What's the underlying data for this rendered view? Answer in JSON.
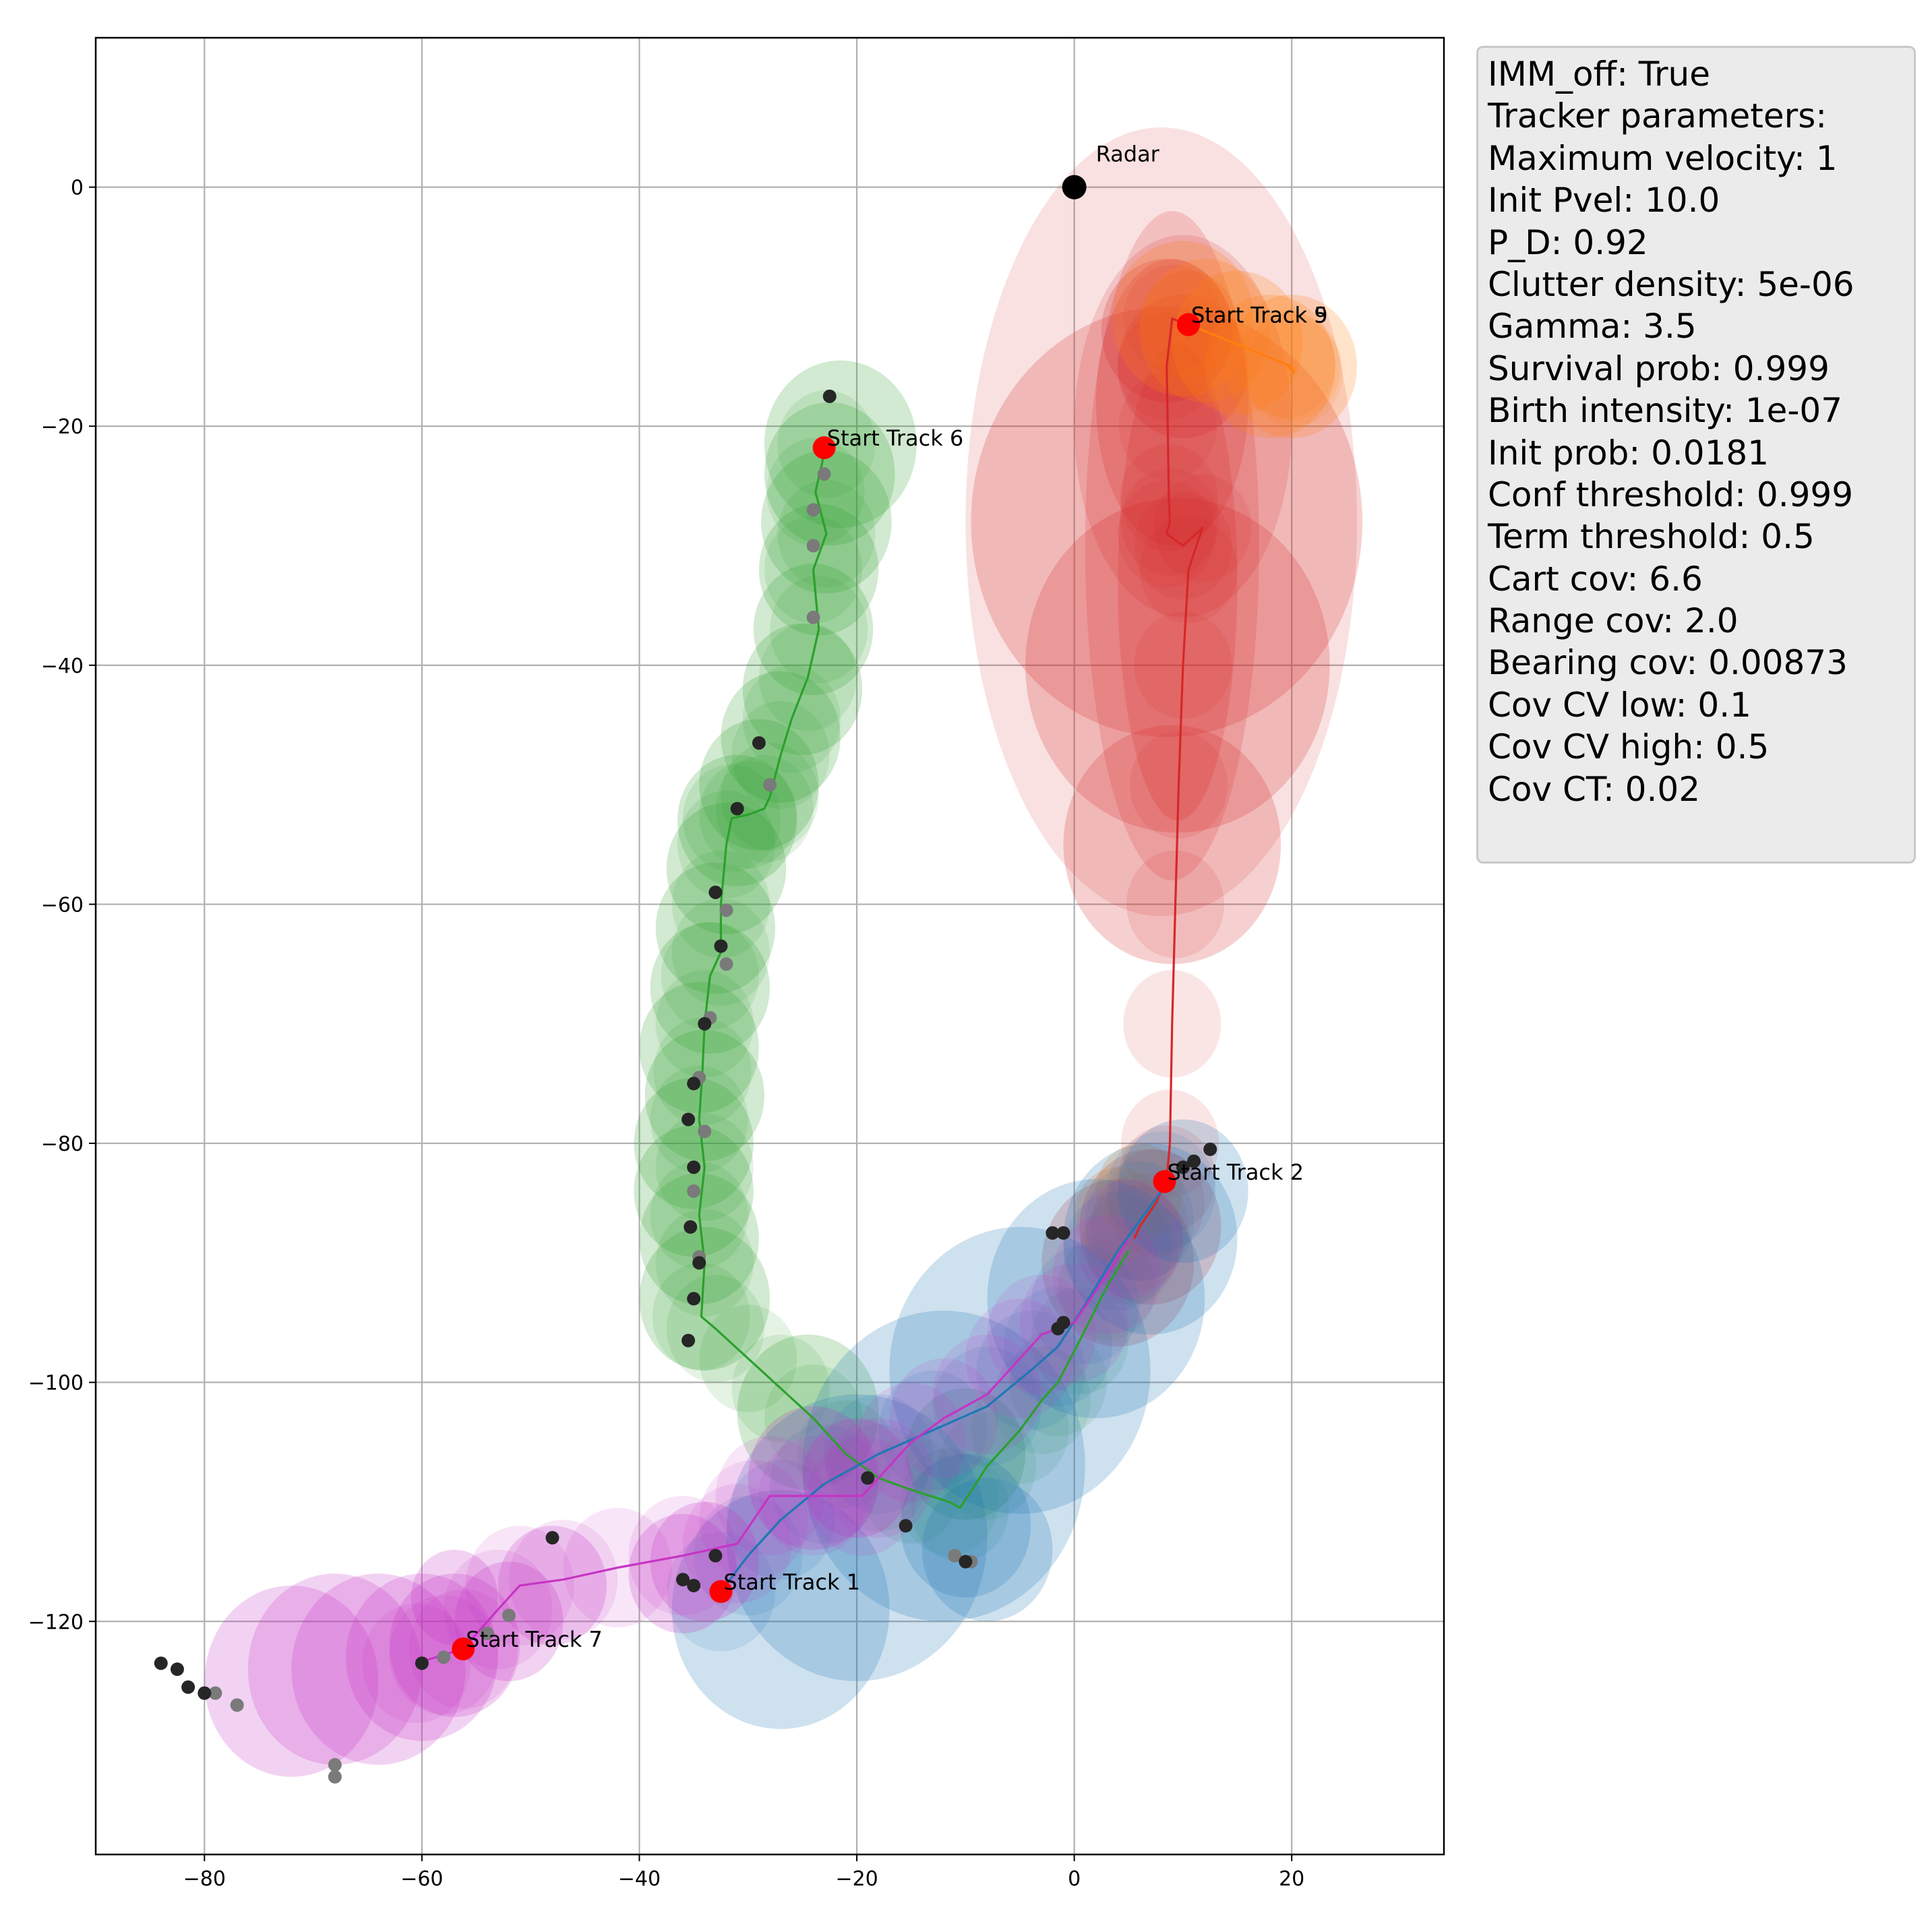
{
  "info_box": {
    "lines": [
      "IMM_off: True",
      "Tracker parameters:",
      "Maximum velocity: 1",
      "Init Pvel: 10.0",
      "P_D: 0.92",
      "Clutter density: 5e-06",
      "Gamma: 3.5",
      "Survival prob: 0.999",
      "Birth intensity: 1e-07",
      "Init prob: 0.0181",
      "Conf threshold: 0.999",
      "Term threshold: 0.5",
      "Cart cov: 6.6",
      "Range cov: 2.0",
      "Bearing cov: 0.00873",
      "Cov CV low: 0.1",
      "Cov CV high: 0.5",
      "Cov CT: 0.02"
    ]
  },
  "chart_data": {
    "type": "scatter",
    "xlim": [
      -90,
      34
    ],
    "ylim": [
      -139.5,
      12.5
    ],
    "xticks": [
      -80,
      -60,
      -40,
      -20,
      0,
      20
    ],
    "yticks": [
      0,
      -20,
      -40,
      -60,
      -80,
      -100,
      -120
    ],
    "xtick_labels": [
      "−80",
      "−60",
      "−40",
      "−20",
      "0",
      "20"
    ],
    "ytick_labels": [
      "0",
      "−20",
      "−40",
      "−60",
      "−80",
      "−100",
      "−120"
    ],
    "grid": true,
    "radar": {
      "label": "Radar",
      "x": 0,
      "y": 0
    },
    "track_starts": [
      {
        "label": "Start Track 1",
        "x": -32.5,
        "y": -117.5
      },
      {
        "label": "Start Track 2",
        "x": 8.3,
        "y": -83.2
      },
      {
        "label": "Start Track 5",
        "x": 10.5,
        "y": -11.5
      },
      {
        "label": "Start Track 9",
        "x": 10.5,
        "y": -11.5
      },
      {
        "label": "Start Track 6",
        "x": -23.0,
        "y": -21.8
      },
      {
        "label": "Start Track 7",
        "x": -56.2,
        "y": -122.3
      }
    ],
    "tracks": [
      {
        "color": "#2ca02c",
        "points": [
          [
            -22.8,
            -21.5
          ],
          [
            -23.8,
            -25.5
          ],
          [
            -22.8,
            -29.0
          ],
          [
            -24.0,
            -32.0
          ],
          [
            -23.5,
            -37.0
          ],
          [
            -24.5,
            -41.0
          ],
          [
            -26.0,
            -44.5
          ],
          [
            -27.0,
            -47.5
          ],
          [
            -28.0,
            -51.0
          ],
          [
            -28.5,
            -52.0
          ],
          [
            -30.0,
            -52.5
          ],
          [
            -31.5,
            -52.8
          ],
          [
            -32.0,
            -55.0
          ],
          [
            -32.5,
            -60.0
          ],
          [
            -32.5,
            -64.0
          ],
          [
            -33.5,
            -66.0
          ],
          [
            -34.0,
            -70.0
          ],
          [
            -34.2,
            -74.0
          ],
          [
            -34.5,
            -78.0
          ],
          [
            -34.0,
            -82.0
          ],
          [
            -34.5,
            -86.0
          ],
          [
            -34.0,
            -90.0
          ],
          [
            -34.3,
            -94.5
          ],
          [
            -33.0,
            -95.5
          ],
          [
            -30.0,
            -98.0
          ],
          [
            -27.0,
            -100.5
          ],
          [
            -24.0,
            -103.0
          ],
          [
            -21.0,
            -106.0
          ],
          [
            -18.0,
            -108.0
          ],
          [
            -15.0,
            -109.0
          ],
          [
            -11.5,
            -110.0
          ],
          [
            -10.5,
            -110.5
          ],
          [
            -8.0,
            -107.0
          ],
          [
            -5.0,
            -104.0
          ],
          [
            -3.0,
            -101.5
          ],
          [
            -1.5,
            -100.0
          ],
          [
            0.5,
            -96.5
          ],
          [
            3.0,
            -92.0
          ],
          [
            5.0,
            -89.0
          ]
        ],
        "blobs": [
          [
            -21.5,
            -21.5,
            7
          ],
          [
            -22.5,
            -24,
            6
          ],
          [
            -22.8,
            -28,
            6
          ],
          [
            -23.5,
            -32,
            5.5
          ],
          [
            -24,
            -37,
            5.5
          ],
          [
            -25,
            -42,
            5.5
          ],
          [
            -27,
            -46,
            5.5
          ],
          [
            -29,
            -50,
            5.5
          ],
          [
            -31,
            -53,
            5.5
          ],
          [
            -32,
            -57,
            5.5
          ],
          [
            -33,
            -62,
            5.5
          ],
          [
            -33.5,
            -67,
            5.5
          ],
          [
            -34.5,
            -72,
            5.5
          ],
          [
            -34,
            -76,
            5.5
          ],
          [
            -35,
            -80,
            5.5
          ],
          [
            -35,
            -84,
            5.5
          ],
          [
            -34.5,
            -88,
            5.5
          ],
          [
            -34,
            -93,
            6
          ],
          [
            -24.5,
            -102.5,
            6.5
          ],
          [
            -10,
            -106,
            5.5
          ]
        ]
      },
      {
        "color": "#d62728",
        "points": [
          [
            10.5,
            -11.5
          ],
          [
            9.0,
            -11.0
          ],
          [
            8.5,
            -15.0
          ],
          [
            8.6,
            -20.0
          ],
          [
            8.7,
            -26.0
          ],
          [
            8.8,
            -28.0
          ],
          [
            8.5,
            -29.0
          ],
          [
            10.0,
            -30.0
          ],
          [
            11.8,
            -28.5
          ],
          [
            10.5,
            -32.0
          ],
          [
            10.0,
            -40.0
          ],
          [
            9.6,
            -50.0
          ],
          [
            9.3,
            -60.0
          ],
          [
            9.0,
            -70.0
          ],
          [
            8.8,
            -80.0
          ],
          [
            8.5,
            -83.0
          ],
          [
            7.5,
            -85.0
          ],
          [
            6.0,
            -87.0
          ],
          [
            5.5,
            -88.0
          ]
        ],
        "blobs": [
          [
            8.5,
            -12,
            6
          ],
          [
            10,
            -15,
            6
          ],
          [
            8.5,
            -28,
            18
          ],
          [
            9.5,
            -40,
            14
          ],
          [
            9,
            -55,
            10
          ],
          [
            7,
            -87,
            6.5
          ],
          [
            4,
            -90,
            7
          ]
        ],
        "ellipses": [
          [
            8,
            -28,
            18,
            33,
            0.14
          ],
          [
            9,
            -30,
            8,
            28,
            0.18
          ],
          [
            9.5,
            -33,
            5.5,
            20,
            0.2
          ],
          [
            10,
            -20,
            10,
            16,
            0.16
          ],
          [
            9,
            -18,
            7,
            12,
            0.2
          ]
        ]
      },
      {
        "color": "#ff7f0e",
        "points": [
          [
            10.5,
            -11.5
          ],
          [
            20.0,
            -15.0
          ],
          [
            20.2,
            -15.5
          ],
          [
            19.5,
            -14.8
          ]
        ],
        "blobs": [
          [
            10,
            -11,
            6.5
          ],
          [
            12,
            -12,
            6
          ],
          [
            15,
            -13,
            6
          ],
          [
            18,
            -15,
            6
          ],
          [
            20,
            -15,
            6
          ],
          [
            6,
            -84,
            4
          ],
          [
            4,
            -86,
            4
          ]
        ]
      },
      {
        "color": "#1f77b4",
        "points": [
          [
            -32.5,
            -117.5
          ],
          [
            -30.0,
            -114.5
          ],
          [
            -27.0,
            -111.5
          ],
          [
            -23.0,
            -108.5
          ],
          [
            -18.0,
            -106.0
          ],
          [
            -13.0,
            -104.0
          ],
          [
            -8.0,
            -102.0
          ],
          [
            -4.0,
            -99.0
          ],
          [
            -1.5,
            -97.0
          ],
          [
            1.0,
            -93.5
          ],
          [
            4.0,
            -89.0
          ],
          [
            6.0,
            -86.5
          ],
          [
            8.0,
            -84.0
          ]
        ],
        "blobs": [
          [
            -27,
            -119,
            10
          ],
          [
            -20,
            -113,
            12
          ],
          [
            -12,
            -107,
            13
          ],
          [
            -5,
            -99,
            12
          ],
          [
            2,
            -93,
            10
          ],
          [
            7,
            -88,
            8
          ],
          [
            10,
            -84,
            6
          ],
          [
            -10,
            -112,
            6
          ],
          [
            -8,
            -114,
            6
          ]
        ]
      },
      {
        "color": "#c634c4",
        "points": [
          [
            -60.5,
            -123.5
          ],
          [
            -58.0,
            -122.8
          ],
          [
            -56.2,
            -122.3
          ],
          [
            -53.0,
            -119.0
          ],
          [
            -51.0,
            -117.0
          ],
          [
            -47.0,
            -116.5
          ],
          [
            -42.0,
            -115.5
          ],
          [
            -36.0,
            -114.5
          ],
          [
            -31.0,
            -113.5
          ],
          [
            -29.5,
            -111.5
          ],
          [
            -28.0,
            -109.5
          ],
          [
            -24.0,
            -109.5
          ],
          [
            -19.5,
            -109.5
          ],
          [
            -18.0,
            -108.0
          ],
          [
            -15.0,
            -105.0
          ],
          [
            -12.0,
            -103.0
          ],
          [
            -8.0,
            -101.0
          ],
          [
            -5.0,
            -98.0
          ],
          [
            -3.0,
            -96.0
          ],
          [
            0.0,
            -95.0
          ],
          [
            3.0,
            -91.0
          ],
          [
            5.0,
            -88.0
          ]
        ],
        "blobs": [
          [
            -72,
            -125,
            8
          ],
          [
            -68,
            -124,
            8
          ],
          [
            -64,
            -124,
            8
          ],
          [
            -60,
            -123,
            7
          ],
          [
            -57,
            -122,
            6
          ],
          [
            -52,
            -120,
            5
          ],
          [
            -48,
            -117,
            5
          ],
          [
            -36,
            -116,
            5
          ],
          [
            -34,
            -115,
            5
          ],
          [
            -24,
            -108,
            6
          ],
          [
            -20,
            -108,
            5
          ],
          [
            -57,
            -118,
            4
          ]
        ]
      }
    ],
    "detections": {
      "dark": [
        [
          -22.5,
          -17.5
        ],
        [
          -29.0,
          -46.5
        ],
        [
          -31.0,
          -52.0
        ],
        [
          -33.0,
          -59.0
        ],
        [
          -32.5,
          -63.5
        ],
        [
          -34.0,
          -70.0
        ],
        [
          -35.0,
          -75.0
        ],
        [
          -35.5,
          -78.0
        ],
        [
          -35.0,
          -82.0
        ],
        [
          -35.3,
          -87.0
        ],
        [
          -34.5,
          -90.0
        ],
        [
          -35.0,
          -93.0
        ],
        [
          -35.5,
          -96.5
        ],
        [
          -2.0,
          -87.5
        ],
        [
          -1.0,
          -87.5
        ],
        [
          -1.0,
          -95.0
        ],
        [
          -1.5,
          -95.5
        ],
        [
          10.0,
          -82.0
        ],
        [
          12.5,
          -80.5
        ],
        [
          11.0,
          -81.5
        ],
        [
          -48.0,
          -113.0
        ],
        [
          -36.0,
          -116.5
        ],
        [
          -35.0,
          -117.0
        ],
        [
          -33.0,
          -114.5
        ],
        [
          -15.5,
          -112.0
        ],
        [
          -19.0,
          -108.0
        ],
        [
          -84.0,
          -123.5
        ],
        [
          -82.5,
          -124.0
        ],
        [
          -81.5,
          -125.5
        ],
        [
          -80.0,
          -126.0
        ],
        [
          -60.0,
          -123.5
        ],
        [
          -10.0,
          -115.0
        ]
      ],
      "gray": [
        [
          -24.0,
          -27.0
        ],
        [
          -23.0,
          -24.0
        ],
        [
          -24.0,
          -30.0
        ],
        [
          -24.0,
          -36.0
        ],
        [
          -28.0,
          -50.0
        ],
        [
          -32.0,
          -60.5
        ],
        [
          -32.0,
          -65.0
        ],
        [
          -33.5,
          -69.5
        ],
        [
          -34.5,
          -74.5
        ],
        [
          -34.0,
          -79.0
        ],
        [
          -35.0,
          -84.0
        ],
        [
          -34.5,
          -89.5
        ],
        [
          -11.0,
          -114.5
        ],
        [
          -9.5,
          -115.0
        ],
        [
          -52.0,
          -119.5
        ],
        [
          -54.0,
          -121.0
        ],
        [
          -58.0,
          -123.0
        ],
        [
          -79.0,
          -126.0
        ],
        [
          -77.0,
          -127.0
        ],
        [
          -68.0,
          -132.0
        ],
        [
          -68.0,
          -133.0
        ]
      ]
    },
    "radar_color": "#000000",
    "start_color": "#ff0000"
  }
}
